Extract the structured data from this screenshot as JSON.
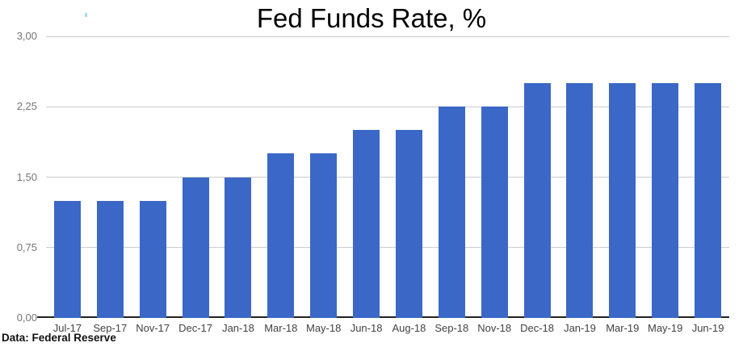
{
  "chart_data": {
    "type": "bar",
    "title": "Fed Funds Rate, %",
    "categories": [
      "Jul-17",
      "Sep-17",
      "Nov-17",
      "Dec-17",
      "Jan-18",
      "Mar-18",
      "May-18",
      "Jun-18",
      "Aug-18",
      "Sep-18",
      "Nov-18",
      "Dec-18",
      "Jan-19",
      "Mar-19",
      "May-19",
      "Jun-19"
    ],
    "values": [
      1.25,
      1.25,
      1.25,
      1.5,
      1.5,
      1.75,
      1.75,
      2.0,
      2.0,
      2.25,
      2.25,
      2.5,
      2.5,
      2.5,
      2.5,
      2.5
    ],
    "xlabel": "",
    "ylabel": "",
    "ylim": [
      0,
      3
    ],
    "y_ticks": [
      {
        "value": 0.0,
        "label": "0,00"
      },
      {
        "value": 0.75,
        "label": "0,75"
      },
      {
        "value": 1.5,
        "label": "1,50"
      },
      {
        "value": 2.25,
        "label": "2,25"
      },
      {
        "value": 3.0,
        "label": "3,00"
      }
    ],
    "grid": true,
    "legend_position": "none",
    "bar_color": "#3b68c7",
    "gridline_color": "#cccccc",
    "axis_line_color": "#212121",
    "y_tick_color": "#757575",
    "x_tick_color": "#424242"
  },
  "source_note": "Data: Federal Reserve",
  "stray_mark_color": "#a5d9f2"
}
